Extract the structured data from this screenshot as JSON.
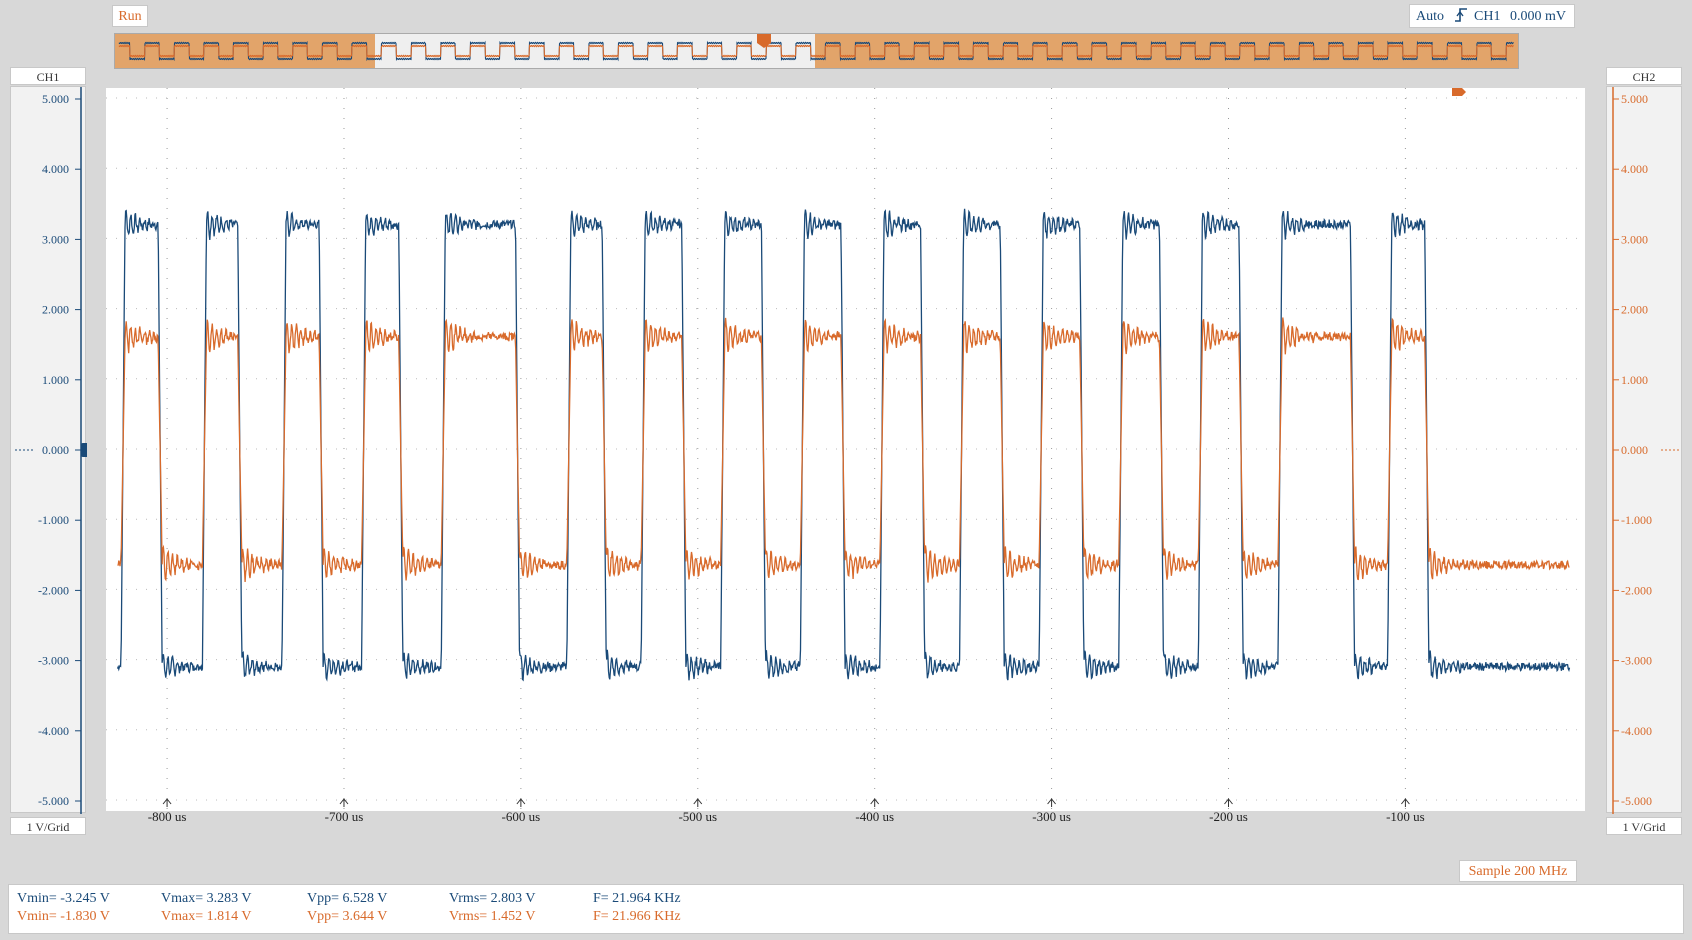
{
  "status": "Run",
  "trigger": {
    "mode": "Auto",
    "channel": "CH1",
    "level": "0.000 mV"
  },
  "channels": [
    {
      "name": "CH1",
      "scale": "1 V/Grid",
      "color": "#1a4a78"
    },
    {
      "name": "CH2",
      "scale": "1 V/Grid",
      "color": "#d86a2b"
    }
  ],
  "y_ticks": [
    "5.000",
    "4.000",
    "3.000",
    "2.000",
    "1.000",
    "0.000",
    "-1.000",
    "-2.000",
    "-3.000",
    "-4.000",
    "-5.000"
  ],
  "x_ticks": [
    "-800 us",
    "-700 us",
    "-600 us",
    "-500 us",
    "-400 us",
    "-300 us",
    "-200 us",
    "-100 us"
  ],
  "sample_rate": "Sample 200 MHz",
  "measurements": {
    "ch1": {
      "vmin": "Vmin= -3.245 V",
      "vmax": "Vmax= 3.283 V",
      "vpp": "Vpp= 6.528 V",
      "vrms": "Vrms= 2.803 V",
      "freq": "F= 21.964 KHz"
    },
    "ch2": {
      "vmin": "Vmin= -1.830 V",
      "vmax": "Vmax= 1.814 V",
      "vpp": "Vpp= 3.644 V",
      "vrms": "Vrms= 1.452 V",
      "freq": "F= 21.966 KHz"
    }
  },
  "chart_data": {
    "type": "line",
    "xlabel": "",
    "ylabel": "",
    "xlim_us": [
      -830,
      -3
    ],
    "ylim": [
      -5,
      5
    ],
    "grid": true,
    "series": [
      {
        "name": "CH1",
        "shape": "square wave with ringing",
        "high": 3.1,
        "low": -3.0,
        "ring_amplitude": 0.2,
        "rising_edges_us": [
          -826,
          -780,
          -735,
          -690,
          -645,
          -574,
          -532,
          -487,
          -442,
          -397,
          -352,
          -307,
          -262,
          -217,
          -172,
          -110
        ],
        "falling_edges_us": [
          -805,
          -760,
          -714,
          -669,
          -603,
          -554,
          -509,
          -464,
          -419,
          -374,
          -329,
          -284,
          -239,
          -194,
          -131,
          -89
        ]
      },
      {
        "name": "CH2",
        "shape": "square wave with ringing",
        "high": 1.5,
        "low": -1.55,
        "ring_amplitude": 0.25,
        "rising_edges_us": [
          -826,
          -780,
          -735,
          -690,
          -645,
          -574,
          -532,
          -487,
          -442,
          -397,
          -352,
          -307,
          -262,
          -217,
          -172,
          -110
        ],
        "falling_edges_us": [
          -805,
          -760,
          -714,
          -669,
          -603,
          -554,
          -509,
          -464,
          -419,
          -374,
          -329,
          -284,
          -239,
          -194,
          -131,
          -89
        ]
      }
    ]
  }
}
